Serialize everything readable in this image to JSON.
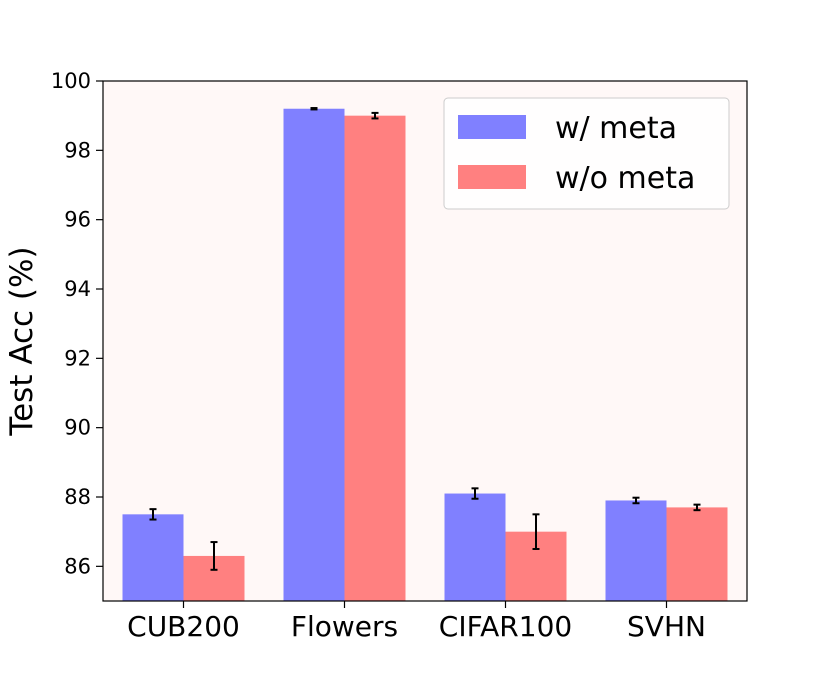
{
  "chart_data": {
    "type": "bar",
    "title": "",
    "xlabel": "",
    "ylabel": "Test Acc (%)",
    "categories": [
      "CUB200",
      "Flowers",
      "CIFAR100",
      "SVHN"
    ],
    "series": [
      {
        "name": "w/ meta",
        "color": "#8080ff",
        "values": [
          87.5,
          99.2,
          88.1,
          87.9
        ],
        "errors": [
          0.15,
          0.02,
          0.15,
          0.08
        ]
      },
      {
        "name": "w/o meta",
        "color": "#ff8080",
        "values": [
          86.3,
          99.0,
          87.0,
          87.7
        ],
        "errors": [
          0.4,
          0.08,
          0.5,
          0.08
        ]
      }
    ],
    "ylim": [
      85,
      100
    ],
    "yticks": [
      86,
      88,
      90,
      92,
      94,
      96,
      98,
      100
    ],
    "grid": false,
    "legend_position": "top-right",
    "plot_background": "#fff8f7"
  }
}
